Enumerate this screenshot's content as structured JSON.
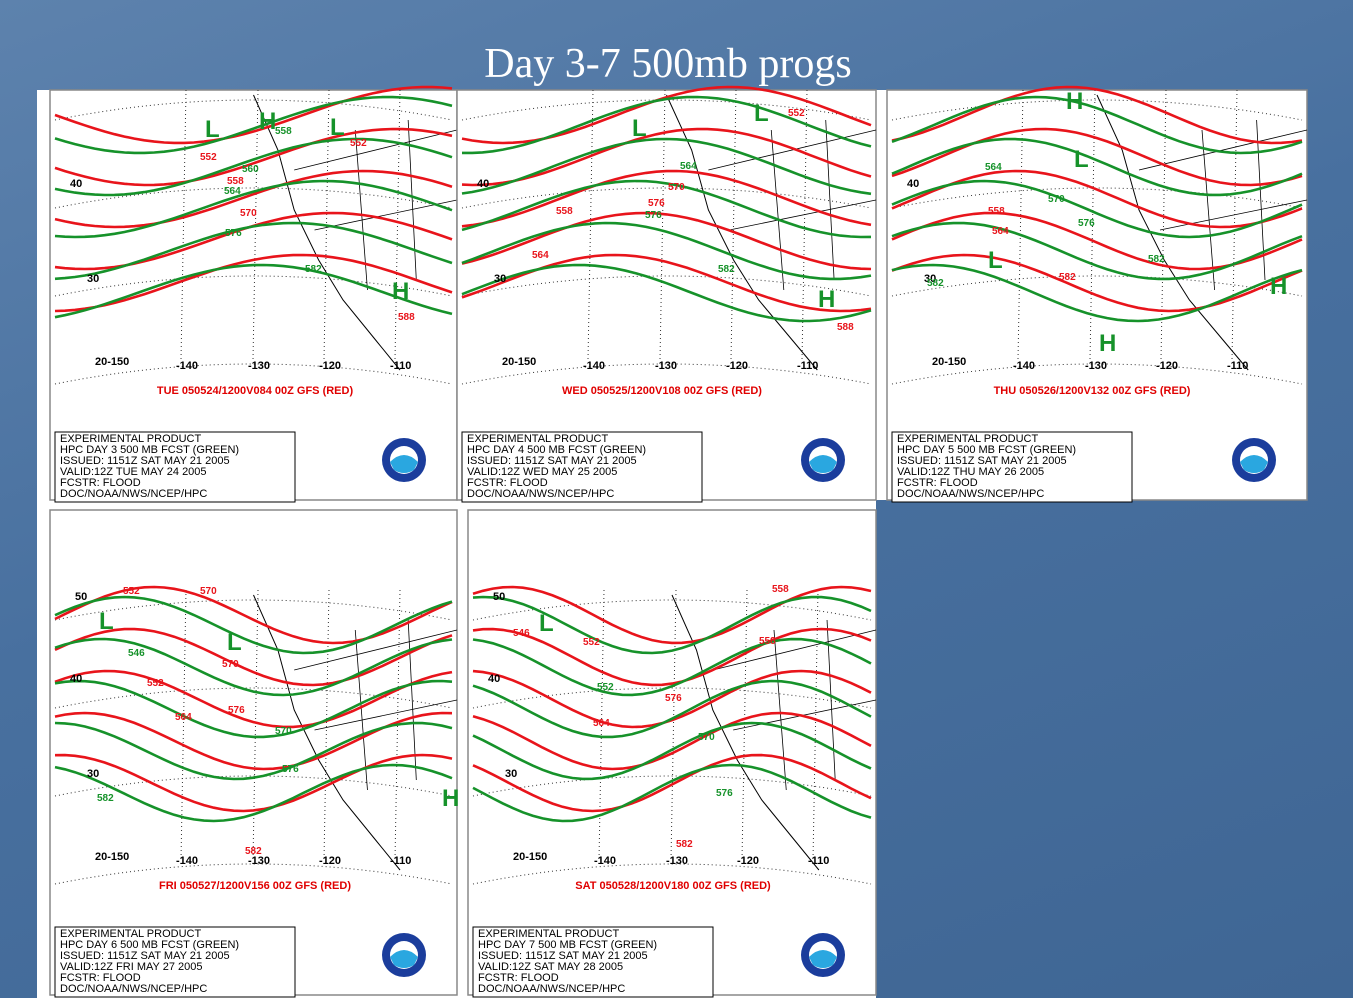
{
  "title": "Day 3-7 500mb progs",
  "panels": [
    {
      "caption": "TUE 050524/1200V084  00Z GFS (RED)",
      "info": [
        "EXPERIMENTAL PRODUCT",
        "HPC DAY 3 500 MB FCST (GREEN)",
        "ISSUED: 1151Z SAT MAY 21 2005",
        "VALID:12Z TUE MAY 24 2005",
        "FCSTR: FLOOD",
        "DOC/NOAA/NWS/NCEP/HPC"
      ],
      "lat_labels": [
        "40",
        "30",
        "20-150"
      ],
      "lon_labels": [
        "-140",
        "-130",
        "-120",
        "-110"
      ],
      "centers": [
        "L",
        "H",
        "L",
        "H"
      ],
      "contour_labels": [
        "552",
        "558",
        "564",
        "570",
        "576",
        "582",
        "552",
        "558",
        "560",
        "588"
      ]
    },
    {
      "caption": "WED 050525/1200V108  00Z GFS (RED)",
      "info": [
        "EXPERIMENTAL PRODUCT",
        "HPC DAY 4 500 MB FCST (GREEN)",
        "ISSUED: 1151Z SAT MAY 21 2005",
        "VALID:12Z WED MAY 25 2005",
        "FCSTR: FLOOD",
        "DOC/NOAA/NWS/NCEP/HPC"
      ],
      "lat_labels": [
        "40",
        "30",
        "20-150"
      ],
      "lon_labels": [
        "-140",
        "-130",
        "-120",
        "-110"
      ],
      "centers": [
        "L",
        "L",
        "H"
      ],
      "contour_labels": [
        "558",
        "564",
        "576",
        "570",
        "576",
        "582",
        "564",
        "552",
        "588"
      ]
    },
    {
      "caption": "THU 050526/1200V132  00Z GFS (RED)",
      "info": [
        "EXPERIMENTAL PRODUCT",
        "HPC DAY 5 500 MB FCST (GREEN)",
        "ISSUED: 1151Z SAT MAY 21 2005",
        "VALID:12Z THU MAY 26 2005",
        "FCSTR: FLOOD",
        "DOC/NOAA/NWS/NCEP/HPC"
      ],
      "lat_labels": [
        "40",
        "30",
        "20-150"
      ],
      "lon_labels": [
        "-140",
        "-130",
        "-120",
        "-110"
      ],
      "centers": [
        "H",
        "L",
        "L",
        "H",
        "H"
      ],
      "contour_labels": [
        "564",
        "558",
        "564",
        "570",
        "576",
        "582",
        "582",
        "582"
      ]
    },
    {
      "caption": "FRI 050527/1200V156  00Z GFS (RED)",
      "info": [
        "EXPERIMENTAL PRODUCT",
        "HPC DAY 6 500 MB FCST (GREEN)",
        "ISSUED: 1151Z SAT MAY 21 2005",
        "VALID:12Z FRI MAY 27 2005",
        "FCSTR: FLOOD",
        "DOC/NOAA/NWS/NCEP/HPC"
      ],
      "lat_labels": [
        "50",
        "40",
        "30",
        "20-150"
      ],
      "lon_labels": [
        "-140",
        "-130",
        "-120",
        "-110"
      ],
      "centers": [
        "L",
        "L",
        "H"
      ],
      "contour_labels": [
        "552",
        "570",
        "546",
        "552",
        "564",
        "576",
        "570",
        "570",
        "576",
        "582",
        "582"
      ]
    },
    {
      "caption": "SAT 050528/1200V180  00Z GFS (RED)",
      "info": [
        "EXPERIMENTAL PRODUCT",
        "HPC DAY 7 500 MB FCST (GREEN)",
        "ISSUED: 1151Z SAT MAY 21 2005",
        "VALID:12Z SAT MAY 28 2005",
        "FCSTR: FLOOD",
        "DOC/NOAA/NWS/NCEP/HPC"
      ],
      "lat_labels": [
        "50",
        "40",
        "30",
        "20-150"
      ],
      "lon_labels": [
        "-140",
        "-130",
        "-120",
        "-110"
      ],
      "centers": [
        "L"
      ],
      "contour_labels": [
        "546",
        "552",
        "552",
        "564",
        "576",
        "570",
        "576",
        "582",
        "558",
        "558"
      ]
    }
  ]
}
